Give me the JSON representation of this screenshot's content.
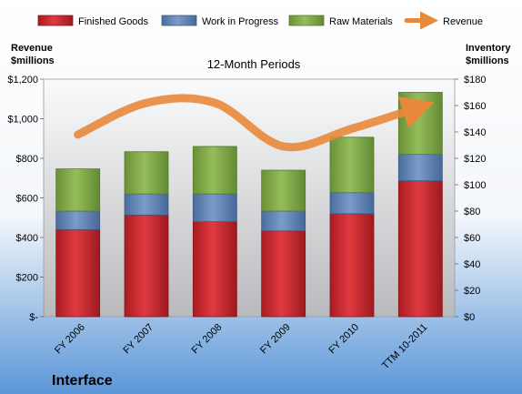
{
  "chart_data": {
    "type": "bar",
    "stacked": true,
    "subtitle": "12-Month Periods",
    "company": "Interface",
    "categories": [
      "FY 2006",
      "FY 2007",
      "FY 2008",
      "FY 2009",
      "FY 2010",
      "TTM 10-2011"
    ],
    "series": [
      {
        "name": "Finished Goods",
        "axis": "right",
        "color": "#c0262b",
        "values": [
          66,
          77,
          72,
          65,
          78,
          103
        ]
      },
      {
        "name": "Work in Progress",
        "axis": "right",
        "color": "#5b7fb4",
        "values": [
          14,
          16,
          21,
          15,
          16,
          20
        ]
      },
      {
        "name": "Raw Materials",
        "axis": "right",
        "color": "#7aa342",
        "values": [
          32,
          32,
          36,
          31,
          42,
          47
        ]
      }
    ],
    "line_series": {
      "name": "Revenue",
      "axis": "left",
      "color": "#e8883a",
      "values": [
        920,
        1080,
        1080,
        860,
        950,
        1060
      ]
    },
    "left_axis": {
      "title_lines": [
        "Revenue",
        "$millions"
      ],
      "ticks": [
        0,
        200,
        400,
        600,
        800,
        1000,
        1200
      ],
      "tick_labels": [
        "$-",
        "$200",
        "$400",
        "$600",
        "$800",
        "$1,000",
        "$1,200"
      ],
      "ylim": [
        0,
        1200
      ]
    },
    "right_axis": {
      "title_lines": [
        "Inventory",
        "$millions"
      ],
      "ticks": [
        0,
        20,
        40,
        60,
        80,
        100,
        120,
        140,
        160,
        180
      ],
      "tick_labels": [
        "$0",
        "$20",
        "$40",
        "$60",
        "$80",
        "$100",
        "$120",
        "$140",
        "$160",
        "$180"
      ],
      "ylim": [
        0,
        180
      ]
    },
    "legend": {
      "placement": "top",
      "entries": [
        "Finished Goods",
        "Work in Progress",
        "Raw Materials",
        "Revenue"
      ]
    },
    "background_top": "#ffffff",
    "background_bottom": "#5a96d8"
  }
}
